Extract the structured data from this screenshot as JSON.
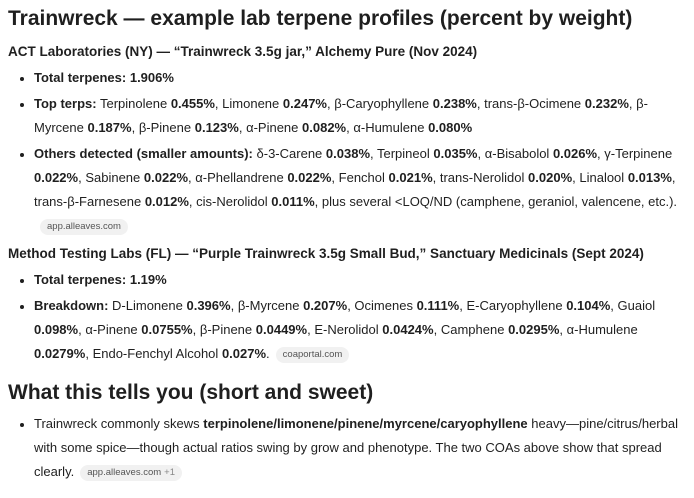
{
  "title": "Trainwreck — example lab terpene profiles (percent by weight)",
  "lab1": {
    "heading": "ACT Laboratories (NY) — “Trainwreck 3.5g jar,” Alchemy Pure (Nov 2024)",
    "total_label": "Total terpenes:",
    "total_value": "1.906%",
    "top_label": "Top terps:",
    "top": [
      {
        "name": "Terpinolene",
        "value": "0.455%"
      },
      {
        "name": "Limonene",
        "value": "0.247%"
      },
      {
        "name": "β-Caryophyllene",
        "value": "0.238%"
      },
      {
        "name": "trans-β-Ocimene",
        "value": "0.232%"
      },
      {
        "name": "β-Myrcene",
        "value": "0.187%"
      },
      {
        "name": "β-Pinene",
        "value": "0.123%"
      },
      {
        "name": "α-Pinene",
        "value": "0.082%"
      },
      {
        "name": "α-Humulene",
        "value": "0.080%"
      }
    ],
    "others_label": "Others detected (smaller amounts):",
    "others": [
      {
        "name": "δ-3-Carene",
        "value": "0.038%"
      },
      {
        "name": "Terpineol",
        "value": "0.035%"
      },
      {
        "name": "α-Bisabolol",
        "value": "0.026%"
      },
      {
        "name": "γ-Terpinene",
        "value": "0.022%"
      },
      {
        "name": "Sabinene",
        "value": "0.022%"
      },
      {
        "name": "α-Phellandrene",
        "value": "0.022%"
      },
      {
        "name": "Fenchol",
        "value": "0.021%"
      },
      {
        "name": "trans-Nerolidol",
        "value": "0.020%"
      },
      {
        "name": "Linalool",
        "value": "0.013%"
      },
      {
        "name": "trans-β-Farnesene",
        "value": "0.012%"
      },
      {
        "name": "cis-Nerolidol",
        "value": "0.011%"
      }
    ],
    "others_tail": ", plus several <LOQ/ND (camphene, geraniol, valencene, etc.).",
    "source": "app.alleaves.com"
  },
  "lab2": {
    "heading": "Method Testing Labs (FL) — “Purple Trainwreck 3.5g Small Bud,” Sanctuary Medicinals (Sept 2024)",
    "total_label": "Total terpenes:",
    "total_value": "1.19%",
    "breakdown_label": "Breakdown:",
    "breakdown": [
      {
        "name": "D-Limonene",
        "value": "0.396%"
      },
      {
        "name": "β-Myrcene",
        "value": "0.207%"
      },
      {
        "name": "Ocimenes",
        "value": "0.111%"
      },
      {
        "name": "E-Caryophyllene",
        "value": "0.104%"
      },
      {
        "name": "Guaiol",
        "value": "0.098%"
      },
      {
        "name": "α-Pinene",
        "value": "0.0755%"
      },
      {
        "name": "β-Pinene",
        "value": "0.0449%"
      },
      {
        "name": "E-Nerolidol",
        "value": "0.0424%"
      },
      {
        "name": "Camphene",
        "value": "0.0295%"
      },
      {
        "name": "α-Humulene",
        "value": "0.0279%"
      },
      {
        "name": "Endo-Fenchyl Alcohol",
        "value": "0.027%"
      }
    ],
    "breakdown_tail": ".",
    "source": "coaportal.com"
  },
  "summary": {
    "heading": "What this tells you (short and sweet)",
    "pre": "Trainwreck commonly skews ",
    "bold": "terpinolene/limonene/pinene/myrcene/caryophyllene",
    "post": " heavy—pine/citrus/herbal with some spice—though actual ratios swing by grow and phenotype. The two COAs above show that spread clearly.",
    "source": "app.alleaves.com",
    "source_more": "+1"
  }
}
